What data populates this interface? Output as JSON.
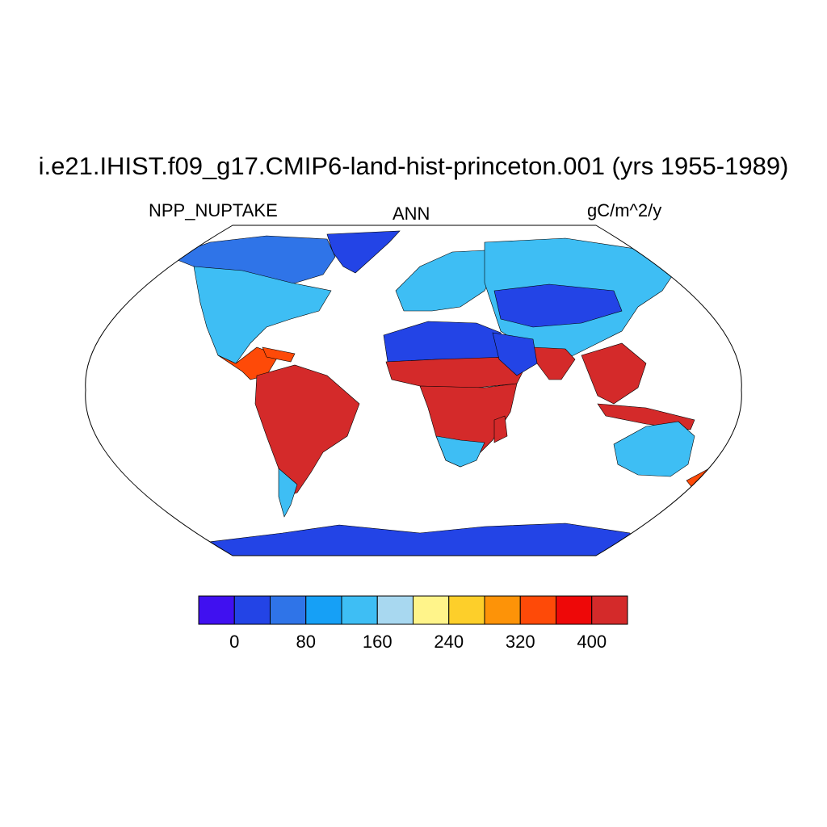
{
  "title": "i.e21.IHIST.f09_g17.CMIP6-land-hist-princeton.001 (yrs 1955-1989)",
  "left_label": "NPP_NUPTAKE",
  "center_label": "ANN",
  "right_label": "gC/m^2/y",
  "colorbar": {
    "colors": [
      "#4010f0",
      "#2344e6",
      "#2f74e8",
      "#16a0f6",
      "#3ebef4",
      "#a8d8f0",
      "#fff48a",
      "#fdcf2a",
      "#fd9308",
      "#fe4a08",
      "#ee0808",
      "#d42a2a"
    ],
    "tick_labels": [
      "0",
      "80",
      "160",
      "240",
      "320",
      "400"
    ]
  },
  "colors": {
    "ocean": "#ffffff",
    "ice": "#2344e6",
    "desert": "#2344e6",
    "temperate": "#3ebef4",
    "boreal": "#2f74e8",
    "tropical": "#d42a2a",
    "savanna": "#fe4a08"
  }
}
